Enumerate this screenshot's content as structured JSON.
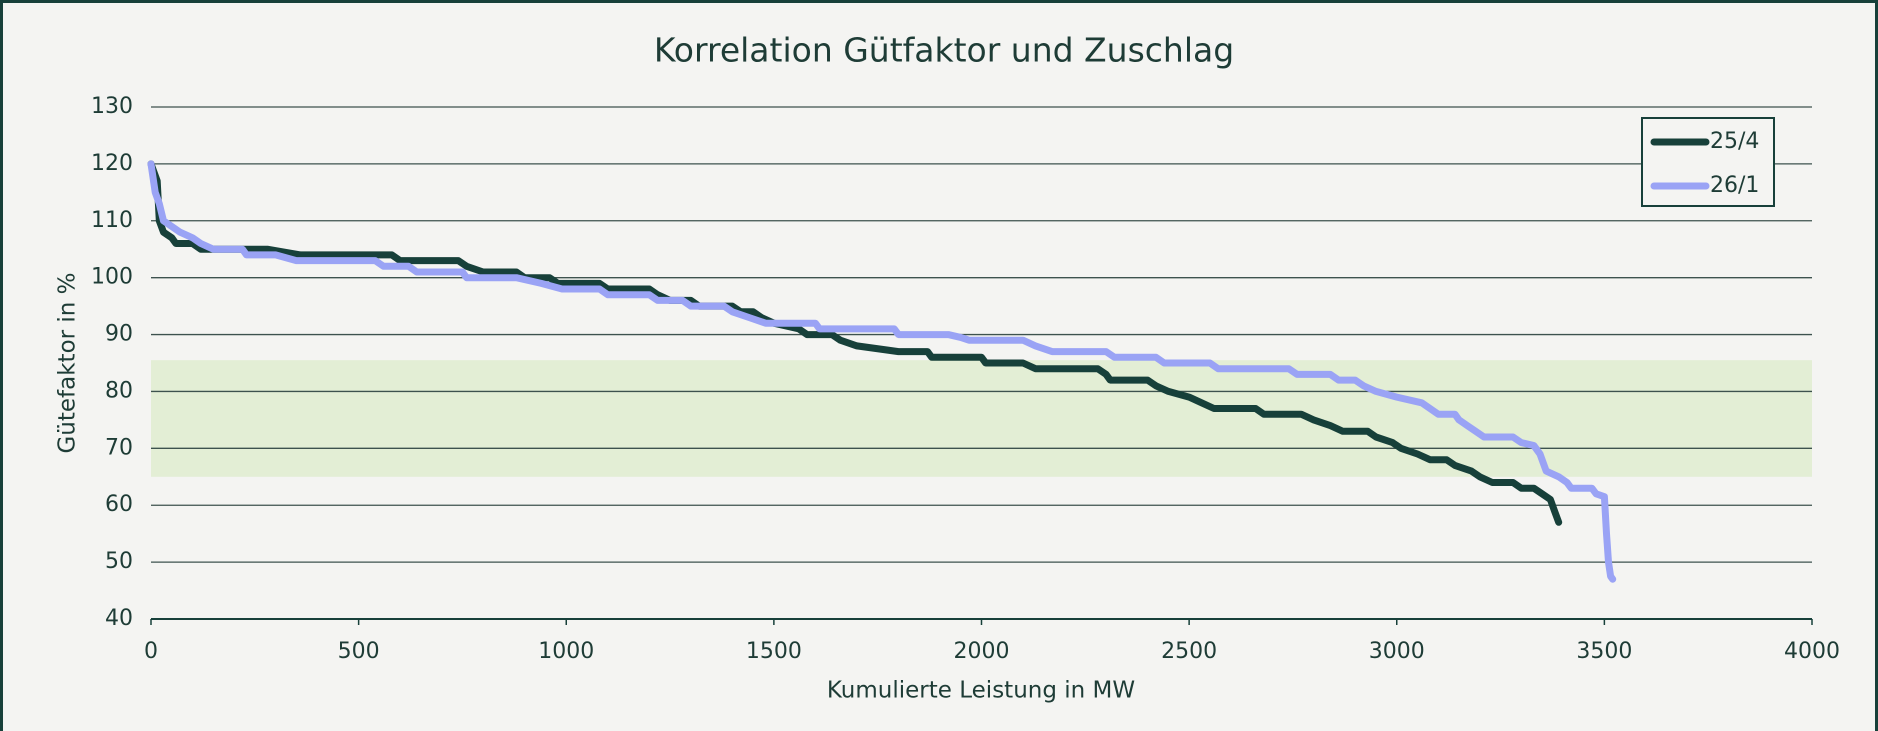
{
  "chart_data": {
    "type": "line",
    "title": "Korrelation Gütfaktor und Zuschlag",
    "x_label": "Kumulierte Leistung in MW",
    "y_label": "Gütefaktor in %",
    "xlim": [
      0,
      4000
    ],
    "xticks": [
      0,
      500,
      1000,
      1500,
      2000,
      2500,
      3000,
      3500,
      4000
    ],
    "ylim": [
      40,
      130
    ],
    "yticks": [
      40,
      50,
      60,
      70,
      80,
      90,
      100,
      110,
      120,
      130
    ],
    "grid": true,
    "legend": "upper right",
    "highlight_band": {
      "from": 65,
      "to": 85.5,
      "color": "#e3eed5"
    },
    "series": [
      {
        "name": "25/4",
        "color": "#17403a",
        "x": [
          0,
          15,
          20,
          30,
          50,
          60,
          100,
          120,
          280,
          360,
          580,
          600,
          740,
          760,
          800,
          880,
          900,
          960,
          980,
          1080,
          1100,
          1200,
          1220,
          1250,
          1300,
          1320,
          1400,
          1420,
          1450,
          1470,
          1500,
          1560,
          1580,
          1640,
          1660,
          1700,
          1800,
          1870,
          1880,
          2000,
          2010,
          2100,
          2130,
          2280,
          2300,
          2310,
          2400,
          2420,
          2450,
          2500,
          2530,
          2560,
          2660,
          2680,
          2770,
          2800,
          2840,
          2870,
          2930,
          2950,
          2990,
          3010,
          3050,
          3080,
          3120,
          3140,
          3180,
          3200,
          3230,
          3280,
          3300,
          3330,
          3350,
          3370,
          3380,
          3390
        ],
        "values": [
          120,
          117,
          110,
          108,
          107,
          106,
          106,
          105,
          105,
          104,
          104,
          103,
          103,
          102,
          101,
          101,
          100,
          100,
          99,
          99,
          98,
          98,
          97,
          96,
          96,
          95,
          95,
          94,
          94,
          93,
          92,
          91,
          90,
          90,
          89,
          88,
          87,
          87,
          86,
          86,
          85,
          85,
          84,
          84,
          83,
          82,
          82,
          81,
          80,
          79,
          78,
          77,
          77,
          76,
          76,
          75,
          74,
          73,
          73,
          72,
          71,
          70,
          69,
          68,
          68,
          67,
          66,
          65,
          64,
          64,
          63,
          63,
          62,
          61,
          59,
          57
        ]
      },
      {
        "name": "26/1",
        "color": "#9aa3f5",
        "x": [
          0,
          10,
          20,
          30,
          50,
          70,
          100,
          120,
          150,
          220,
          230,
          300,
          350,
          540,
          560,
          620,
          640,
          750,
          760,
          880,
          940,
          990,
          1080,
          1100,
          1200,
          1220,
          1280,
          1300,
          1380,
          1400,
          1440,
          1480,
          1600,
          1610,
          1790,
          1800,
          1920,
          1950,
          1970,
          2100,
          2130,
          2170,
          2300,
          2320,
          2420,
          2440,
          2550,
          2570,
          2740,
          2760,
          2840,
          2860,
          2900,
          2920,
          2950,
          3000,
          3060,
          3080,
          3100,
          3140,
          3150,
          3170,
          3190,
          3210,
          3280,
          3300,
          3330,
          3345,
          3360,
          3390,
          3410,
          3420,
          3470,
          3480,
          3500,
          3505,
          3510,
          3515,
          3520
        ],
        "values": [
          120,
          115,
          113,
          110,
          109,
          108,
          107,
          106,
          105,
          105,
          104,
          104,
          103,
          103,
          102,
          102,
          101,
          101,
          100,
          100,
          99,
          98,
          98,
          97,
          97,
          96,
          96,
          95,
          95,
          94,
          93,
          92,
          92,
          91,
          91,
          90,
          90,
          89.5,
          89,
          89,
          88,
          87,
          87,
          86,
          86,
          85,
          85,
          84,
          84,
          83,
          83,
          82,
          82,
          81,
          80,
          79,
          78,
          77,
          76,
          76,
          75,
          74,
          73,
          72,
          72,
          71,
          70.5,
          69,
          66,
          65,
          64,
          63,
          63,
          62,
          61.5,
          55,
          50,
          47.5,
          47
        ]
      }
    ]
  }
}
